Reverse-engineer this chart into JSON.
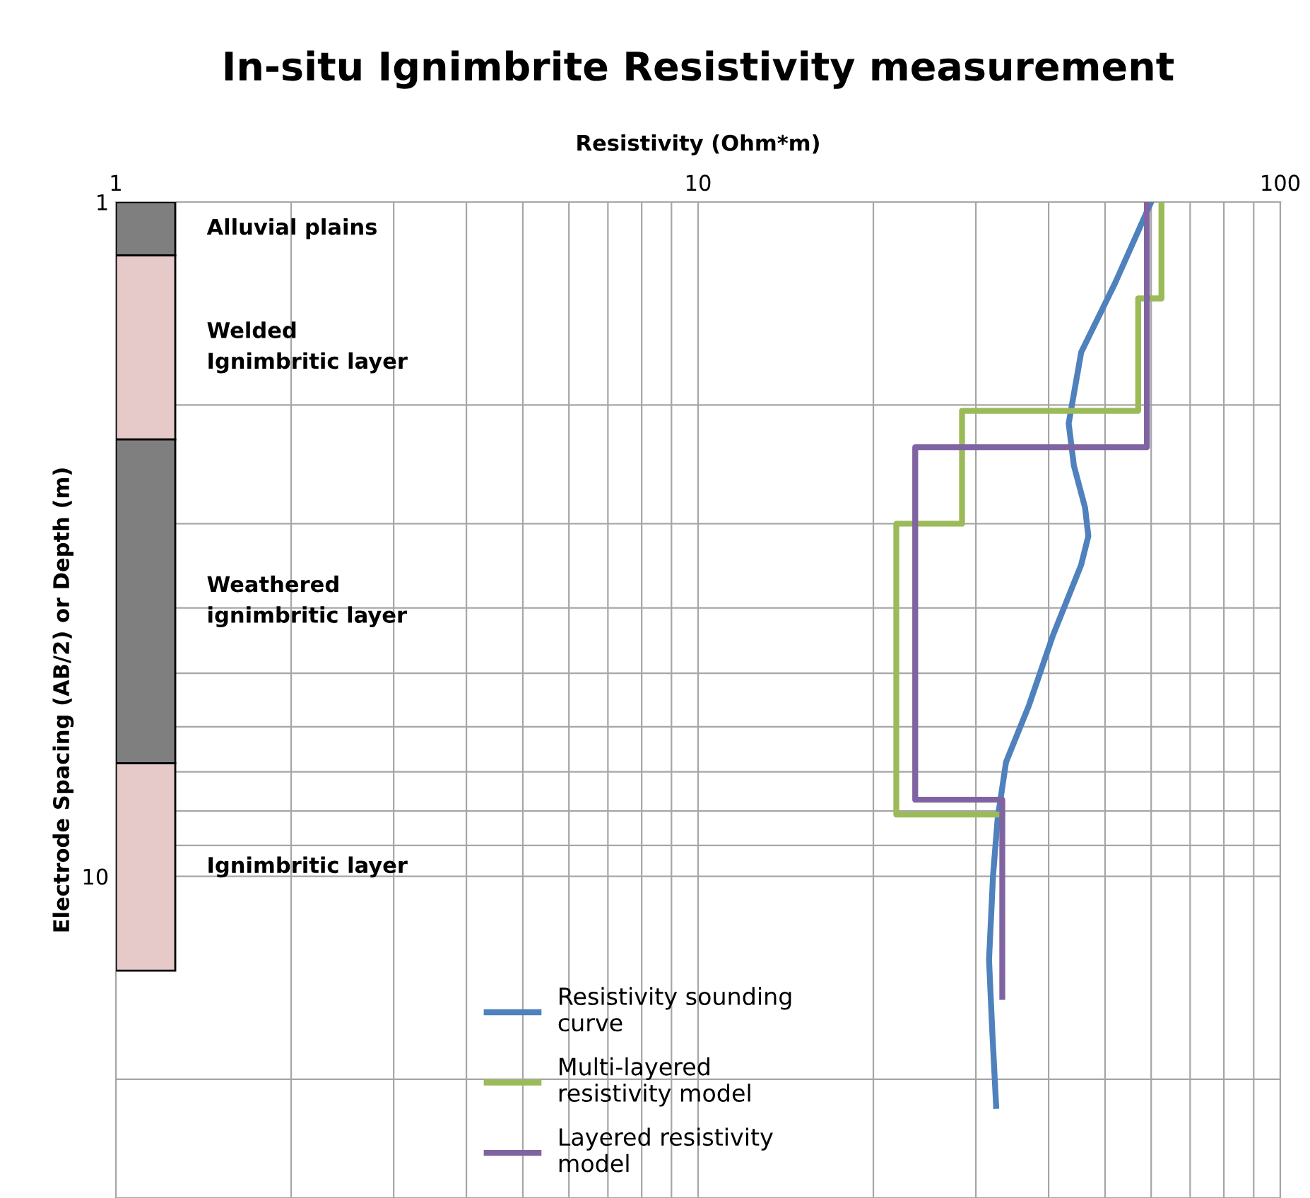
{
  "chart_data": {
    "type": "line",
    "title": "In-situ Ignimbrite Resistivity measurement",
    "xlabel": "Resistivity (Ohm*m)",
    "ylabel": "Electrode Spacing (AB/2) or Depth (m)",
    "log": "xy",
    "xlim": [
      1,
      100
    ],
    "xticks": [
      1,
      10,
      100
    ],
    "ylim": [
      30,
      1
    ],
    "yticks": [
      1,
      10
    ],
    "grid": true,
    "legend": "bottom",
    "marker": "none",
    "line_style": "solid",
    "series": [
      {
        "name": "Resistivity sounding curve",
        "color": "#4f81bd",
        "x": [
          60,
          52,
          45.5,
          43.3,
          44.2,
          46.2,
          46.8,
          45.5,
          40.7,
          37,
          33.8,
          32.7,
          32.1,
          31.6,
          32,
          32.5
        ],
        "values": [
          1,
          1.32,
          1.67,
          2.13,
          2.46,
          2.84,
          3.13,
          3.45,
          4.39,
          5.58,
          6.77,
          8.2,
          10,
          13.3,
          16.9,
          21.9
        ]
      },
      {
        "name": "Multi-layered resistivity model",
        "color": "#9bbb59",
        "x": [
          62.5,
          62.5,
          57,
          57,
          28.4,
          28.4,
          21.9,
          21.9,
          33.3
        ],
        "values": [
          1,
          1.39,
          1.39,
          2.04,
          2.04,
          3.0,
          3.0,
          8.1,
          8.1
        ]
      },
      {
        "name": "Layered resistivity model",
        "color": "#8064a2",
        "x": [
          59,
          59,
          23.6,
          23.6,
          33.3,
          33.3
        ],
        "values": [
          1,
          2.31,
          2.31,
          7.7,
          7.7,
          15.1
        ]
      }
    ],
    "bands": [
      {
        "axis": "y",
        "from": 1,
        "to": 1.2,
        "label": "Alluvial plains",
        "color": "#7f7f7f"
      },
      {
        "axis": "y",
        "from": 1.2,
        "to": 2.25,
        "label": "Welded Ignimbritic layer",
        "color": "#e6c9c9"
      },
      {
        "axis": "y",
        "from": 2.25,
        "to": 6.8,
        "label": "Weathered ignimbritic layer",
        "color": "#7f7f7f"
      },
      {
        "axis": "y",
        "from": 6.8,
        "to": 13.8,
        "label": "Ignimbritic layer",
        "color": "#e6c9c9"
      }
    ]
  }
}
